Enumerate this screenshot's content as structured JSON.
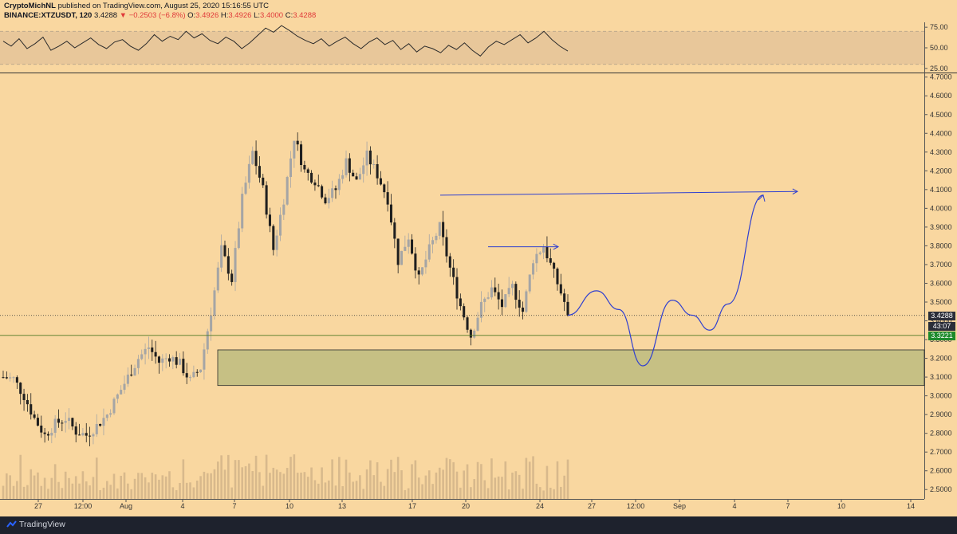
{
  "header": {
    "author": "CryptoMichNL",
    "published": "published on TradingView.com, August 25, 2020 15:16:55 UTC",
    "symbol": "BINANCE:XTZUSDT, 120",
    "last": "3.4288",
    "change": "▼ −0.2503 (−6.8%)",
    "open_label": "O:",
    "open": "3.4926",
    "high_label": "H:",
    "high": "3.4926",
    "low_label": "L:",
    "low": "3.4000",
    "close_label": "C:",
    "close": "3.4288"
  },
  "footer": {
    "brand": "TradingView"
  },
  "colors": {
    "background": "#f9d7a0",
    "bull_candle": "#a5a5a5",
    "bear_candle": "#1f1f1f",
    "projection": "#2f3fd0",
    "zone_fill": "#c6c084",
    "current_price_tag": "#2a2e39",
    "support_tag": "#1d8a2c"
  },
  "chart_data": [
    {
      "type": "line",
      "name": "oscillator panel",
      "y_ticks": [
        "75.00",
        "50.00",
        "25.00"
      ],
      "ylim": [
        20,
        80
      ],
      "band": [
        30,
        70
      ],
      "values": [
        58,
        52,
        61,
        49,
        55,
        63,
        47,
        52,
        58,
        50,
        56,
        62,
        54,
        49,
        57,
        60,
        52,
        47,
        55,
        66,
        58,
        64,
        60,
        70,
        62,
        67,
        59,
        55,
        63,
        58,
        49,
        56,
        65,
        74,
        69,
        77,
        71,
        64,
        59,
        55,
        61,
        52,
        58,
        63,
        55,
        49,
        57,
        62,
        54,
        59,
        48,
        55,
        45,
        52,
        49,
        44,
        53,
        48,
        56,
        47,
        40,
        51,
        58,
        54,
        60,
        66,
        56,
        62,
        70,
        60,
        52,
        46
      ]
    },
    {
      "type": "candlestick",
      "symbol": "XTZUSDT",
      "interval": "120",
      "x_ticks": [
        "27",
        "12:00",
        "Aug",
        "4",
        "7",
        "10",
        "13",
        "17",
        "20",
        "24",
        "27",
        "12:00",
        "Sep",
        "4",
        "7",
        "10",
        "14"
      ],
      "y_ticks": [
        "4.7000",
        "4.6000",
        "4.5000",
        "4.4000",
        "4.3000",
        "4.2000",
        "4.1000",
        "4.0000",
        "3.9000",
        "3.8000",
        "3.7000",
        "3.6000",
        "3.5000",
        "3.4000",
        "3.3000",
        "3.2000",
        "3.1000",
        "3.0000",
        "2.9000",
        "2.8000",
        "2.7000",
        "2.6000",
        "2.5000"
      ],
      "ylim": [
        2.45,
        4.72
      ],
      "path": [
        [
          0,
          3.1
        ],
        [
          3,
          3.09
        ],
        [
          6,
          3.0
        ],
        [
          9,
          2.88
        ],
        [
          12,
          2.79
        ],
        [
          15,
          2.85
        ],
        [
          18,
          2.88
        ],
        [
          21,
          2.81
        ],
        [
          24,
          2.79
        ],
        [
          27,
          2.84
        ],
        [
          30,
          2.9
        ],
        [
          33,
          3.0
        ],
        [
          36,
          3.1
        ],
        [
          39,
          3.2
        ],
        [
          42,
          3.26
        ],
        [
          45,
          3.18
        ],
        [
          48,
          3.21
        ],
        [
          51,
          3.17
        ],
        [
          54,
          3.08
        ],
        [
          57,
          3.15
        ],
        [
          60,
          3.45
        ],
        [
          63,
          3.78
        ],
        [
          66,
          3.62
        ],
        [
          69,
          4.05
        ],
        [
          72,
          4.3
        ],
        [
          75,
          4.1
        ],
        [
          78,
          3.78
        ],
        [
          81,
          4.05
        ],
        [
          84,
          4.38
        ],
        [
          87,
          4.2
        ],
        [
          90,
          4.15
        ],
        [
          93,
          4.05
        ],
        [
          96,
          4.1
        ],
        [
          99,
          4.25
        ],
        [
          102,
          4.14
        ],
        [
          105,
          4.28
        ],
        [
          108,
          4.18
        ],
        [
          111,
          4.05
        ],
        [
          114,
          3.72
        ],
        [
          117,
          3.85
        ],
        [
          120,
          3.62
        ],
        [
          123,
          3.78
        ],
        [
          126,
          3.9
        ],
        [
          129,
          3.68
        ],
        [
          132,
          3.48
        ],
        [
          135,
          3.32
        ],
        [
          138,
          3.48
        ],
        [
          141,
          3.57
        ],
        [
          144,
          3.48
        ],
        [
          147,
          3.58
        ],
        [
          150,
          3.45
        ],
        [
          153,
          3.73
        ],
        [
          156,
          3.8
        ],
        [
          159,
          3.65
        ],
        [
          162,
          3.5
        ],
        [
          163,
          3.43
        ]
      ],
      "current_price": "3.4288",
      "countdown": "43:07",
      "support_price": "3.3221",
      "demand_zone": [
        3.055,
        3.245
      ],
      "arrow_to_4_07": [
        4.07,
        4.09
      ],
      "arrow_to_3_8": [
        3.795,
        3.795
      ],
      "projection_path": [
        3.43,
        3.56,
        3.46,
        3.16,
        3.51,
        3.43,
        3.35,
        3.49,
        4.07
      ],
      "volume_max": 1.0
    }
  ]
}
